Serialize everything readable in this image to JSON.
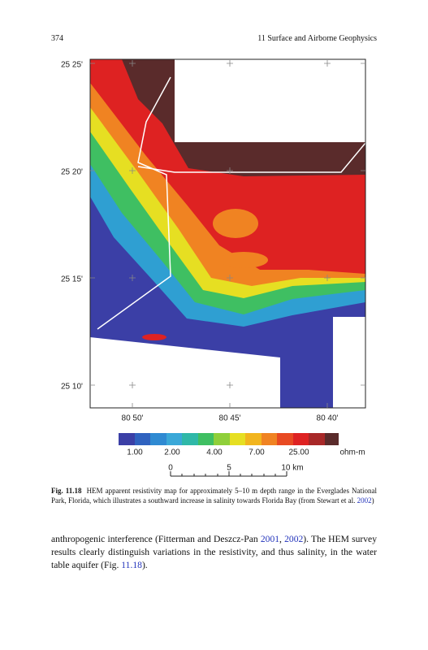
{
  "header": {
    "page_number": "374",
    "running_title": "11 Surface and Airborne Geophysics"
  },
  "figure": {
    "lat_labels": [
      "25 25'",
      "25 20'",
      "25 15'",
      "25 10'"
    ],
    "lon_labels": [
      "80 50'",
      "80 45'",
      "80 40'"
    ],
    "colorbar": {
      "labels": [
        "1.00",
        "2.00",
        "4.00",
        "7.00",
        "25.00"
      ],
      "unit": "ohm-m"
    },
    "scale_bar": {
      "labels": [
        "0",
        "5",
        "10 km"
      ]
    },
    "caption": {
      "label": "Fig. 11.18",
      "text": "HEM apparent resistivity map for approximately 5–10 m depth range in the Everglades National Park, Florida, which illustrates a southward increase in salinity towards Florida Bay (from Stewart et al. ",
      "citation_year": "2002",
      "close": ")"
    }
  },
  "body": {
    "parts": [
      "anthropogenic interference (Fitterman and Deszcz-Pan ",
      "2001",
      ", ",
      "2002",
      "). The HEM survey results clearly distinguish variations in the resistivity, and thus salinity, in the water table aquifer (Fig. ",
      "11.18",
      ")."
    ]
  }
}
